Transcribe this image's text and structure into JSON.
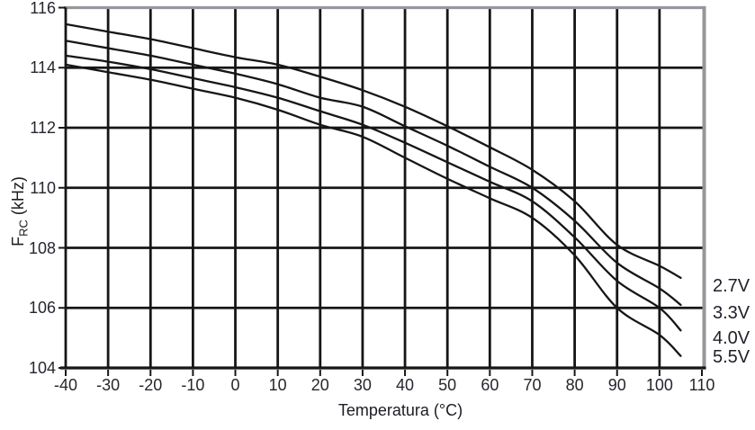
{
  "chart_data": {
    "type": "line",
    "title": "",
    "xlabel": "Temperatura (°C)",
    "ylabel": {
      "prefix": "F",
      "subscript": "RC",
      "suffix": " (kHz)"
    },
    "xlim": [
      -40,
      110
    ],
    "ylim": [
      104,
      116
    ],
    "x_ticks": [
      -40,
      -30,
      -20,
      -10,
      0,
      10,
      20,
      30,
      40,
      50,
      60,
      70,
      80,
      90,
      100,
      110
    ],
    "y_ticks": [
      116,
      114,
      112,
      110,
      108,
      106,
      104
    ],
    "grid": "full grid, black lines every 10°C and every 2 kHz",
    "legend_position": "right margin, one label at each curve end",
    "x": [
      -40,
      -30,
      -20,
      -10,
      0,
      10,
      20,
      30,
      40,
      50,
      60,
      70,
      80,
      90,
      100,
      105
    ],
    "series": [
      {
        "name": "2.7V",
        "values": [
          115.45,
          115.2,
          114.95,
          114.65,
          114.35,
          114.1,
          113.7,
          113.25,
          112.7,
          112.05,
          111.35,
          110.6,
          109.55,
          108.1,
          107.4,
          107.0
        ]
      },
      {
        "name": "3.3V",
        "values": [
          114.9,
          114.65,
          114.4,
          114.1,
          113.8,
          113.45,
          113.0,
          112.7,
          112.05,
          111.4,
          110.7,
          110.0,
          108.9,
          107.5,
          106.65,
          106.1
        ]
      },
      {
        "name": "4.0V",
        "values": [
          114.4,
          114.2,
          113.95,
          113.65,
          113.35,
          113.0,
          112.55,
          112.1,
          111.5,
          110.85,
          110.2,
          109.55,
          108.35,
          106.9,
          106.0,
          105.25
        ]
      },
      {
        "name": "5.5V",
        "values": [
          114.1,
          113.85,
          113.6,
          113.3,
          113.0,
          112.6,
          112.1,
          111.7,
          111.0,
          110.3,
          109.65,
          109.0,
          107.75,
          106.0,
          105.1,
          104.4
        ]
      }
    ],
    "colors": {
      "curve": "#161616",
      "grid": "#161616",
      "axis": "#161616",
      "border_top_right": "#96969b",
      "text": "#26262e"
    }
  }
}
